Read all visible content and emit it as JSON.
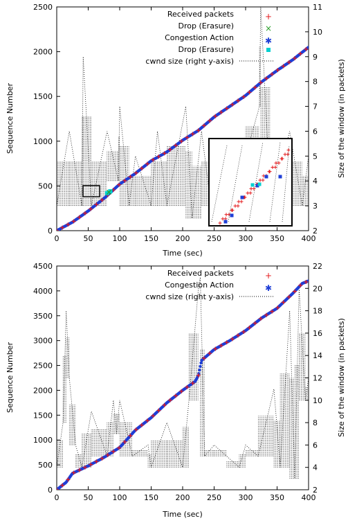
{
  "chart_data": [
    {
      "type": "scatter",
      "xlabel": "Time (sec)",
      "ylabel": "Sequence Number",
      "ylabel_right": "Size of the window (in packets)",
      "xlim": [
        0,
        400
      ],
      "ylim": [
        0,
        2500
      ],
      "ylim_right": [
        2,
        11
      ],
      "xticks": [
        "0",
        "50",
        "100",
        "150",
        "200",
        "250",
        "300",
        "350",
        "400"
      ],
      "yticks": [
        "0",
        "500",
        "1000",
        "1500",
        "2000",
        "2500"
      ],
      "yticks_right": [
        "2",
        "3",
        "4",
        "5",
        "6",
        "7",
        "8",
        "9",
        "10",
        "11"
      ],
      "legend_position": "top-right",
      "series": [
        {
          "name": "Received packets",
          "marker": "+",
          "color": "#e41a1c",
          "x": [
            0,
            25,
            50,
            75,
            100,
            125,
            150,
            175,
            200,
            225,
            250,
            275,
            300,
            325,
            350,
            375,
            400
          ],
          "y": [
            0,
            95,
            220,
            360,
            520,
            640,
            780,
            880,
            1010,
            1120,
            1270,
            1390,
            1510,
            1660,
            1790,
            1910,
            2050
          ]
        },
        {
          "name": "Drop (Erasure)",
          "marker": "x",
          "color": "#2ca02c",
          "x": [
            83
          ],
          "y": [
            430
          ]
        },
        {
          "name": "Congestion Action",
          "marker": "*",
          "color": "#1f3fd6",
          "x": [
            0,
            25,
            50,
            75,
            100,
            125,
            150,
            175,
            200,
            225,
            250,
            275,
            300,
            325,
            350,
            375,
            400
          ],
          "y": [
            0,
            95,
            220,
            360,
            520,
            640,
            780,
            880,
            1010,
            1120,
            1270,
            1390,
            1510,
            1660,
            1790,
            1910,
            2050
          ]
        },
        {
          "name": "Drop (Erasure)",
          "marker": "square",
          "color": "#00d0d0",
          "x": [
            80,
            85
          ],
          "y": [
            420,
            440
          ]
        },
        {
          "name": "cwnd size (right y-axis)",
          "line": "dotted",
          "color": "#000000",
          "axis": "right",
          "x": [
            0,
            20,
            40,
            42,
            55,
            80,
            98,
            100,
            115,
            125,
            150,
            160,
            175,
            205,
            215,
            230,
            245,
            260,
            280,
            300,
            322,
            324,
            340,
            370,
            390,
            400
          ],
          "y": [
            3,
            6,
            3,
            9,
            3,
            6,
            4,
            7,
            3,
            5,
            3,
            6,
            3,
            7,
            2.5,
            6,
            3,
            5,
            3,
            5,
            7,
            11,
            3,
            6,
            3,
            5
          ]
        }
      ]
    },
    {
      "type": "scatter",
      "xlabel": "Time (sec)",
      "ylabel": "Sequence Number",
      "ylabel_right": "Size of the window (in packets)",
      "xlim": [
        0,
        400
      ],
      "ylim": [
        0,
        4500
      ],
      "ylim_right": [
        2,
        22
      ],
      "xticks": [
        "0",
        "50",
        "100",
        "150",
        "200",
        "250",
        "300",
        "350",
        "400"
      ],
      "yticks": [
        "0",
        "500",
        "1000",
        "1500",
        "2000",
        "2500",
        "3000",
        "3500",
        "4000",
        "4500"
      ],
      "yticks_right": [
        "2",
        "4",
        "6",
        "8",
        "10",
        "12",
        "14",
        "16",
        "18",
        "20",
        "22"
      ],
      "legend_position": "top-right",
      "series": [
        {
          "name": "Received packets",
          "marker": "+",
          "color": "#e41a1c",
          "x": [
            0,
            15,
            25,
            50,
            75,
            100,
            125,
            150,
            175,
            200,
            220,
            225,
            230,
            250,
            275,
            300,
            325,
            350,
            375,
            390,
            400
          ],
          "y": [
            0,
            150,
            330,
            480,
            650,
            850,
            1200,
            1450,
            1750,
            2000,
            2180,
            2300,
            2600,
            2820,
            3000,
            3200,
            3450,
            3650,
            3950,
            4150,
            4200
          ]
        },
        {
          "name": "Congestion Action",
          "marker": "*",
          "color": "#1f3fd6",
          "x": [
            0,
            15,
            25,
            50,
            75,
            100,
            125,
            150,
            175,
            200,
            220,
            225,
            230,
            250,
            275,
            300,
            325,
            350,
            375,
            390,
            400
          ],
          "y": [
            0,
            150,
            330,
            480,
            650,
            850,
            1200,
            1450,
            1750,
            2000,
            2180,
            2300,
            2600,
            2820,
            3000,
            3200,
            3450,
            3650,
            3950,
            4150,
            4200
          ]
        },
        {
          "name": "cwnd size (right y-axis)",
          "line": "dotted",
          "color": "#000000",
          "axis": "right",
          "x": [
            0,
            10,
            15,
            20,
            30,
            40,
            55,
            80,
            90,
            95,
            100,
            120,
            145,
            150,
            175,
            200,
            210,
            225,
            228,
            235,
            250,
            270,
            290,
            300,
            320,
            345,
            355,
            370,
            378,
            385,
            395,
            400
          ],
          "y": [
            4,
            8,
            18,
            12,
            6,
            4,
            9,
            5,
            10,
            7,
            10,
            5,
            6,
            4,
            8,
            4,
            10,
            20,
            21,
            5,
            6,
            5,
            4,
            6,
            5,
            11,
            4,
            18,
            3,
            20,
            10,
            12
          ]
        }
      ]
    }
  ]
}
